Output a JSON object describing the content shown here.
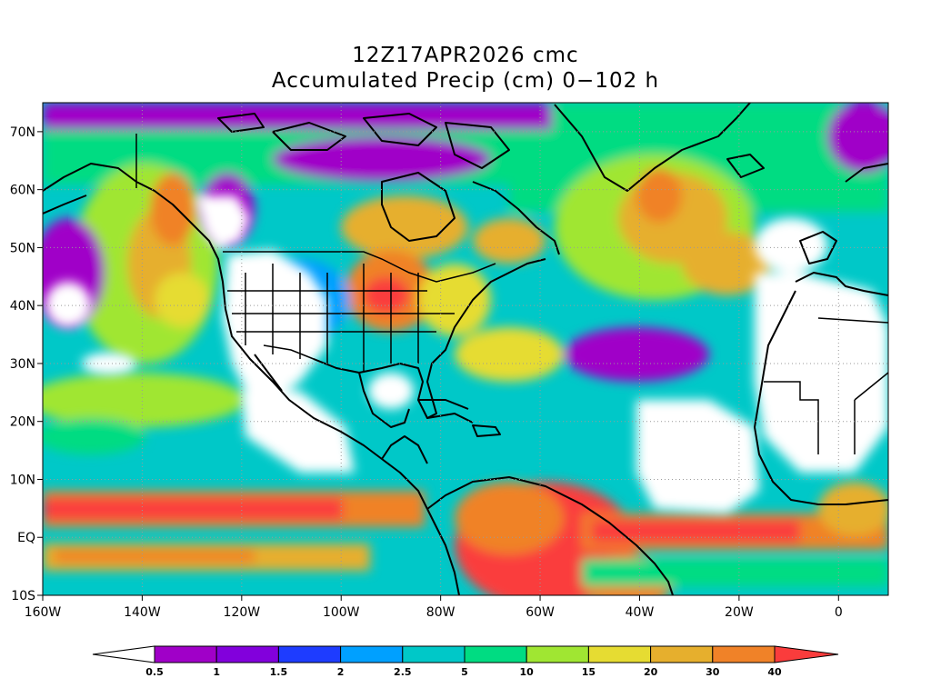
{
  "title_line1": "12Z17APR2026 cmc",
  "title_line2": "Accumulated Precip (cm) 0−102 h",
  "axes": {
    "lon_labels": [
      "160W",
      "140W",
      "120W",
      "100W",
      "80W",
      "60W",
      "40W",
      "20W",
      "0"
    ],
    "lat_labels": [
      "70N",
      "60N",
      "50N",
      "40N",
      "30N",
      "20N",
      "10N",
      "EQ",
      "10S"
    ],
    "lon_values": [
      -160,
      -140,
      -120,
      -100,
      -80,
      -60,
      -40,
      -20,
      0
    ],
    "lat_values": [
      70,
      60,
      50,
      40,
      30,
      20,
      10,
      0,
      -10
    ],
    "lon_range": [
      -160,
      10
    ],
    "lat_range": [
      -10,
      75
    ],
    "grid": "dotted"
  },
  "colorbar": {
    "labels": [
      "0.5",
      "1",
      "1.5",
      "2",
      "2.5",
      "5",
      "10",
      "15",
      "20",
      "30",
      "40"
    ],
    "colors": [
      "#ffffff",
      "#a000c8",
      "#8200dc",
      "#1e3cff",
      "#00a0ff",
      "#00c8c8",
      "#00dc82",
      "#a0e632",
      "#e6dc32",
      "#e6af2d",
      "#f08228",
      "#fa3c3c"
    ]
  }
}
